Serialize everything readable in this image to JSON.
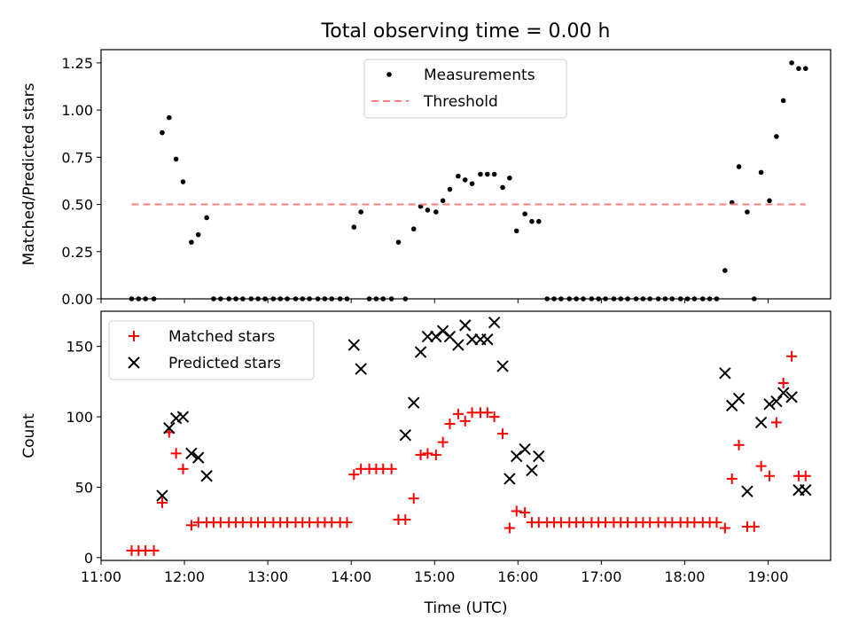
{
  "chart_data": [
    {
      "type": "scatter",
      "title": "Total observing time = 0.00 h",
      "xlabel": "",
      "ylabel": "Matched/Predicted stars",
      "xlim": [
        "11:00",
        "19:45"
      ],
      "ylim": [
        0,
        1.32
      ],
      "yticks": [
        "0.00",
        "0.25",
        "0.50",
        "0.75",
        "1.00",
        "1.25"
      ],
      "legend": "upper center",
      "series": [
        {
          "name": "Measurements",
          "marker": "dot",
          "color": "#000000",
          "x": [
            "11:22",
            "11:27",
            "11:32",
            "11:38",
            "11:44",
            "11:49",
            "11:54",
            "11:59",
            "12:05",
            "12:10",
            "12:16",
            "12:21",
            "12:26",
            "12:32",
            "12:37",
            "12:42",
            "12:48",
            "12:53",
            "12:58",
            "13:04",
            "13:09",
            "13:14",
            "13:20",
            "13:25",
            "13:30",
            "13:36",
            "13:41",
            "13:46",
            "13:52",
            "13:57",
            "14:02",
            "14:07",
            "14:13",
            "14:18",
            "14:23",
            "14:29",
            "14:34",
            "14:39",
            "14:45",
            "14:50",
            "14:55",
            "15:01",
            "15:06",
            "15:11",
            "15:17",
            "15:22",
            "15:27",
            "15:33",
            "15:38",
            "15:43",
            "15:49",
            "15:54",
            "15:59",
            "16:05",
            "16:10",
            "16:15",
            "16:21",
            "16:26",
            "16:31",
            "16:37",
            "16:42",
            "16:47",
            "16:53",
            "16:58",
            "17:03",
            "17:09",
            "17:14",
            "17:19",
            "17:25",
            "17:30",
            "17:35",
            "17:41",
            "17:46",
            "17:51",
            "17:57",
            "18:02",
            "18:07",
            "18:13",
            "18:18",
            "18:23",
            "18:29",
            "18:34",
            "18:39",
            "18:45",
            "18:50",
            "18:55",
            "19:01",
            "19:06",
            "19:11",
            "19:17",
            "19:22",
            "19:27"
          ],
          "y": [
            0,
            0,
            0,
            0,
            0.88,
            0.96,
            0.74,
            0.62,
            0.3,
            0.34,
            0.43,
            0,
            0,
            0,
            0,
            0,
            0,
            0,
            0,
            0,
            0,
            0,
            0,
            0,
            0,
            0,
            0,
            0,
            0,
            0,
            0.38,
            0.46,
            0,
            0,
            0,
            0,
            0.3,
            0,
            0.37,
            0.49,
            0.47,
            0.46,
            0.52,
            0.58,
            0.65,
            0.63,
            0.61,
            0.66,
            0.66,
            0.66,
            0.59,
            0.64,
            0.36,
            0.45,
            0.41,
            0.41,
            0,
            0,
            0,
            0,
            0,
            0,
            0,
            0,
            0,
            0,
            0,
            0,
            0,
            0,
            0,
            0,
            0,
            0,
            0,
            0,
            0,
            0,
            0,
            0,
            0.15,
            0.51,
            0.7,
            0.46,
            0,
            0.67,
            0.52,
            0.86,
            1.05,
            1.25,
            1.22,
            1.22
          ]
        },
        {
          "name": "Threshold",
          "marker": "dashed-line",
          "color": "#ff7f7f",
          "x": [
            "11:22",
            "19:27"
          ],
          "y": [
            0.5,
            0.5
          ]
        }
      ]
    },
    {
      "type": "scatter",
      "title": "",
      "xlabel": "Time (UTC)",
      "ylabel": "Count",
      "xlim": [
        "11:00",
        "19:45"
      ],
      "ylim": [
        -2,
        175
      ],
      "yticks": [
        "0",
        "50",
        "100",
        "150"
      ],
      "xticks": [
        "11:00",
        "12:00",
        "13:00",
        "14:00",
        "15:00",
        "16:00",
        "17:00",
        "18:00",
        "19:00"
      ],
      "legend": "upper left",
      "series": [
        {
          "name": "Matched stars",
          "marker": "+",
          "color": "#ff0000",
          "x": [
            "11:22",
            "11:27",
            "11:32",
            "11:38",
            "11:44",
            "11:49",
            "11:54",
            "11:59",
            "12:05",
            "12:10",
            "12:16",
            "12:21",
            "12:26",
            "12:32",
            "12:37",
            "12:42",
            "12:48",
            "12:53",
            "12:58",
            "13:04",
            "13:09",
            "13:14",
            "13:20",
            "13:25",
            "13:30",
            "13:36",
            "13:41",
            "13:46",
            "13:52",
            "13:57",
            "14:02",
            "14:07",
            "14:13",
            "14:18",
            "14:23",
            "14:29",
            "14:34",
            "14:39",
            "14:45",
            "14:50",
            "14:55",
            "15:01",
            "15:06",
            "15:11",
            "15:17",
            "15:22",
            "15:27",
            "15:33",
            "15:38",
            "15:43",
            "15:49",
            "15:54",
            "15:59",
            "16:05",
            "16:10",
            "16:15",
            "16:21",
            "16:26",
            "16:31",
            "16:37",
            "16:42",
            "16:47",
            "16:53",
            "16:58",
            "17:03",
            "17:09",
            "17:14",
            "17:19",
            "17:25",
            "17:30",
            "17:35",
            "17:41",
            "17:46",
            "17:51",
            "17:57",
            "18:02",
            "18:07",
            "18:13",
            "18:18",
            "18:23",
            "18:29",
            "18:34",
            "18:39",
            "18:45",
            "18:50",
            "18:55",
            "19:01",
            "19:06",
            "19:11",
            "19:17",
            "19:22",
            "19:27"
          ],
          "y": [
            5,
            5,
            5,
            5,
            39,
            89,
            74,
            63,
            23,
            25,
            25,
            25,
            25,
            25,
            25,
            25,
            25,
            25,
            25,
            25,
            25,
            25,
            25,
            25,
            25,
            25,
            25,
            25,
            25,
            25,
            59,
            63,
            63,
            63,
            63,
            63,
            27,
            27,
            42,
            73,
            74,
            73,
            82,
            95,
            102,
            97,
            103,
            103,
            103,
            100,
            88,
            21,
            33,
            32,
            25,
            25,
            25,
            25,
            25,
            25,
            25,
            25,
            25,
            25,
            25,
            25,
            25,
            25,
            25,
            25,
            25,
            25,
            25,
            25,
            25,
            25,
            25,
            25,
            25,
            25,
            21,
            56,
            80,
            22,
            22,
            65,
            58,
            96,
            124,
            143,
            58,
            58
          ]
        },
        {
          "name": "Predicted stars",
          "marker": "x",
          "color": "#000000",
          "x": [
            "11:44",
            "11:49",
            "11:54",
            "11:59",
            "12:05",
            "12:10",
            "12:16",
            "14:02",
            "14:07",
            "14:39",
            "14:45",
            "14:50",
            "14:55",
            "15:01",
            "15:06",
            "15:11",
            "15:17",
            "15:22",
            "15:27",
            "15:33",
            "15:38",
            "15:43",
            "15:49",
            "15:54",
            "15:59",
            "16:05",
            "16:10",
            "16:15",
            "18:29",
            "18:34",
            "18:39",
            "18:45",
            "18:55",
            "19:01",
            "19:06",
            "19:11",
            "19:17",
            "19:22",
            "19:27"
          ],
          "y": [
            44,
            92,
            99,
            100,
            74,
            71,
            58,
            151,
            134,
            87,
            110,
            146,
            157,
            157,
            161,
            157,
            151,
            165,
            155,
            155,
            155,
            167,
            136,
            56,
            72,
            77,
            62,
            72,
            131,
            108,
            113,
            47,
            96,
            109,
            111,
            117,
            114,
            48,
            48
          ]
        }
      ]
    }
  ]
}
